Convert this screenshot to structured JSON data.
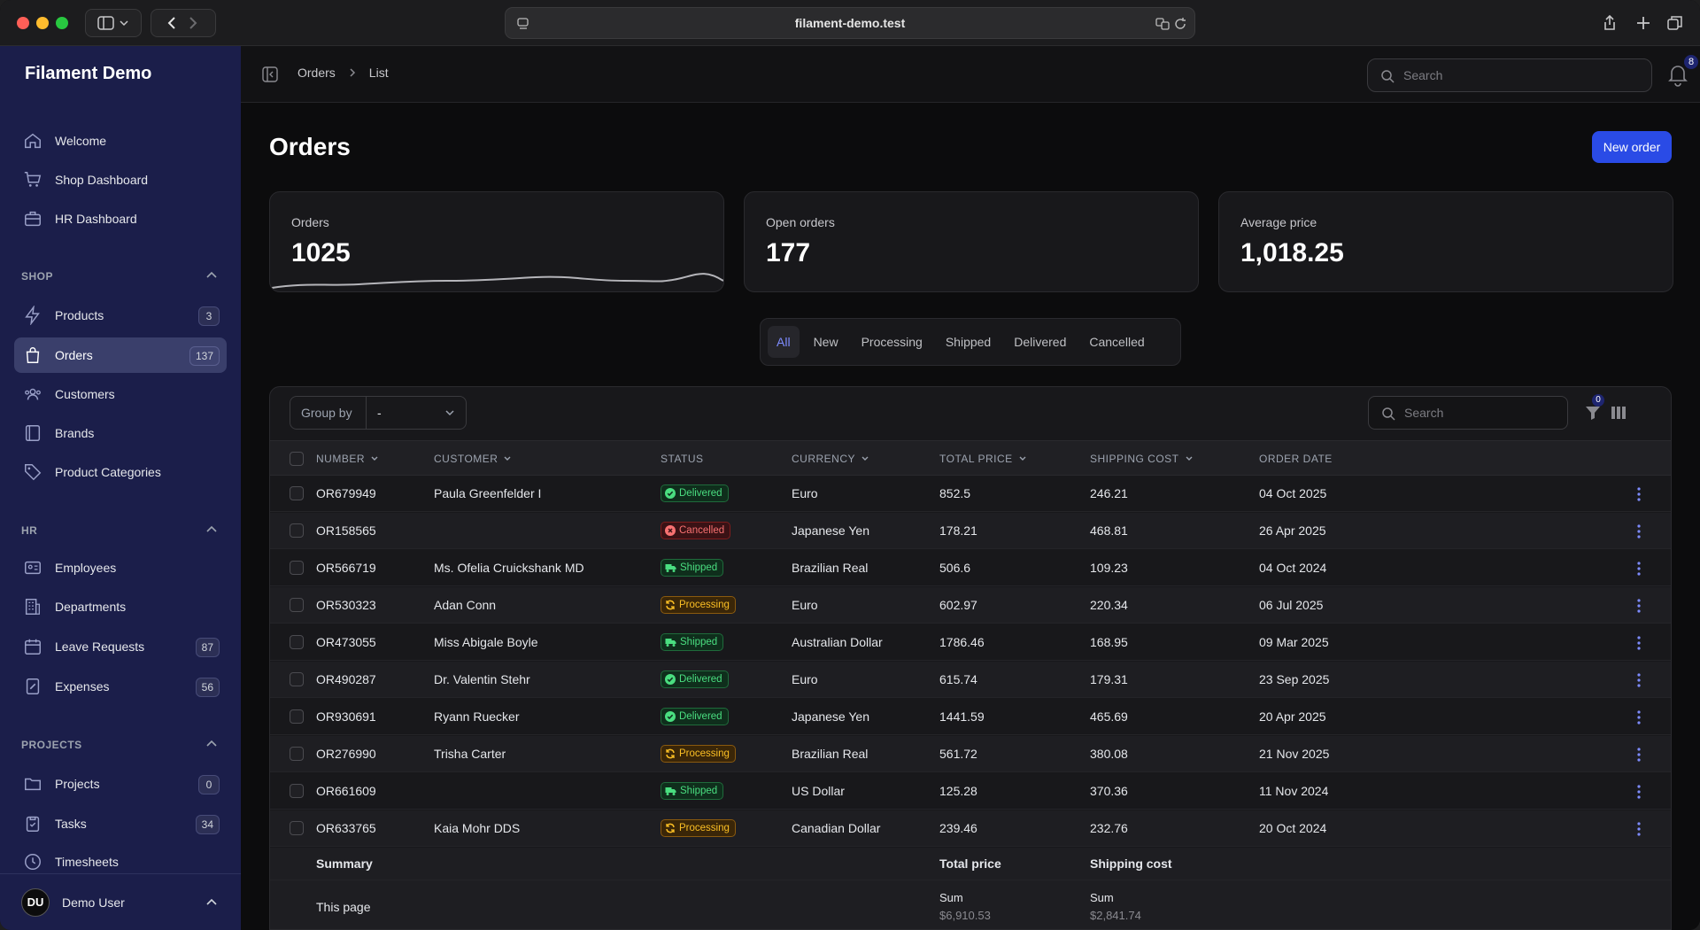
{
  "browser": {
    "url": "filament-demo.test"
  },
  "sidebar": {
    "brand": "Filament Demo",
    "top_items": [
      {
        "label": "Welcome",
        "icon": "home-icon"
      },
      {
        "label": "Shop Dashboard",
        "icon": "cart-icon"
      },
      {
        "label": "HR Dashboard",
        "icon": "briefcase-icon"
      }
    ],
    "groups": [
      {
        "label": "SHOP",
        "items": [
          {
            "label": "Products",
            "badge": "3",
            "icon": "bolt-icon"
          },
          {
            "label": "Orders",
            "badge": "137",
            "icon": "shopping-bag-icon",
            "active": true
          },
          {
            "label": "Customers",
            "badge": "",
            "icon": "users-icon"
          },
          {
            "label": "Brands",
            "badge": "",
            "icon": "book-icon"
          },
          {
            "label": "Product Categories",
            "badge": "",
            "icon": "tag-icon"
          }
        ]
      },
      {
        "label": "HR",
        "items": [
          {
            "label": "Employees",
            "badge": "",
            "icon": "id-card-icon"
          },
          {
            "label": "Departments",
            "badge": "",
            "icon": "building-icon"
          },
          {
            "label": "Leave Requests",
            "badge": "87",
            "icon": "calendar-icon"
          },
          {
            "label": "Expenses",
            "badge": "56",
            "icon": "receipt-icon"
          }
        ]
      },
      {
        "label": "PROJECTS",
        "items": [
          {
            "label": "Projects",
            "badge": "0",
            "icon": "folder-icon"
          },
          {
            "label": "Tasks",
            "badge": "34",
            "icon": "clipboard-icon"
          },
          {
            "label": "Timesheets",
            "badge": "",
            "icon": "clock-icon"
          }
        ]
      }
    ],
    "user": {
      "initials": "DU",
      "name": "Demo User"
    }
  },
  "topbar": {
    "breadcrumb": [
      "Orders",
      "List"
    ],
    "search_placeholder": "Search",
    "notification_count": "8"
  },
  "page": {
    "title": "Orders",
    "new_button": "New order",
    "stats": [
      {
        "label": "Orders",
        "value": "1025"
      },
      {
        "label": "Open orders",
        "value": "177"
      },
      {
        "label": "Average price",
        "value": "1,018.25"
      }
    ],
    "tabs": [
      "All",
      "New",
      "Processing",
      "Shipped",
      "Delivered",
      "Cancelled"
    ],
    "active_tab": "All"
  },
  "table": {
    "group_by_label": "Group by",
    "group_by_value": "-",
    "search_placeholder": "Search",
    "filter_count": "0",
    "columns": [
      "NUMBER",
      "CUSTOMER",
      "STATUS",
      "CURRENCY",
      "TOTAL PRICE",
      "SHIPPING COST",
      "ORDER DATE"
    ],
    "rows": [
      {
        "number": "OR679949",
        "customer": "Paula Greenfelder I",
        "status": "Delivered",
        "currency": "Euro",
        "total": "852.5",
        "shipping": "246.21",
        "date": "04 Oct 2025"
      },
      {
        "number": "OR158565",
        "customer": "",
        "status": "Cancelled",
        "currency": "Japanese Yen",
        "total": "178.21",
        "shipping": "468.81",
        "date": "26 Apr 2025"
      },
      {
        "number": "OR566719",
        "customer": "Ms. Ofelia Cruickshank MD",
        "status": "Shipped",
        "currency": "Brazilian Real",
        "total": "506.6",
        "shipping": "109.23",
        "date": "04 Oct 2024"
      },
      {
        "number": "OR530323",
        "customer": "Adan Conn",
        "status": "Processing",
        "currency": "Euro",
        "total": "602.97",
        "shipping": "220.34",
        "date": "06 Jul 2025"
      },
      {
        "number": "OR473055",
        "customer": "Miss Abigale Boyle",
        "status": "Shipped",
        "currency": "Australian Dollar",
        "total": "1786.46",
        "shipping": "168.95",
        "date": "09 Mar 2025"
      },
      {
        "number": "OR490287",
        "customer": "Dr. Valentin Stehr",
        "status": "Delivered",
        "currency": "Euro",
        "total": "615.74",
        "shipping": "179.31",
        "date": "23 Sep 2025"
      },
      {
        "number": "OR930691",
        "customer": "Ryann Ruecker",
        "status": "Delivered",
        "currency": "Japanese Yen",
        "total": "1441.59",
        "shipping": "465.69",
        "date": "20 Apr 2025"
      },
      {
        "number": "OR276990",
        "customer": "Trisha Carter",
        "status": "Processing",
        "currency": "Brazilian Real",
        "total": "561.72",
        "shipping": "380.08",
        "date": "21 Nov 2025"
      },
      {
        "number": "OR661609",
        "customer": "",
        "status": "Shipped",
        "currency": "US Dollar",
        "total": "125.28",
        "shipping": "370.36",
        "date": "11 Nov 2024"
      },
      {
        "number": "OR633765",
        "customer": "Kaia Mohr DDS",
        "status": "Processing",
        "currency": "Canadian Dollar",
        "total": "239.46",
        "shipping": "232.76",
        "date": "20 Oct 2024"
      }
    ],
    "summary": {
      "label": "Summary",
      "total_header": "Total price",
      "shipping_header": "Shipping cost",
      "page_label": "This page",
      "sum_label": "Sum",
      "total_sum": "$6,910.53",
      "shipping_sum": "$2,841.74"
    }
  },
  "colors": {
    "sidebar": "#1b1e4a",
    "accent": "#2a4be6",
    "active_tab_text": "#7e8cff"
  }
}
